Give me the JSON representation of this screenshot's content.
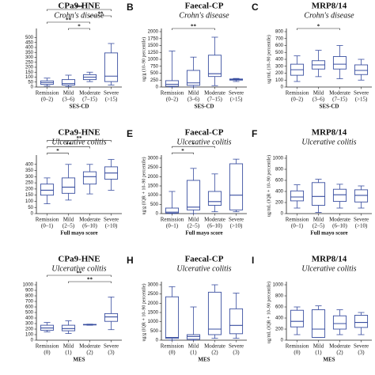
{
  "chart_data": [
    {
      "type": "box",
      "title": "CPa9-HNE",
      "subtitle": "Crohn's disease",
      "categories": [
        "Remission",
        "Mild",
        "Moderate",
        "Severe"
      ],
      "ranges": [
        "(0–2)",
        "(3–6)",
        "(7–15)",
        "(>15)"
      ],
      "xlabel": "SES-CD",
      "ylim": [
        0,
        560
      ],
      "yticks": [
        0,
        50,
        100,
        150,
        200,
        250,
        300,
        350,
        400,
        450,
        500
      ],
      "color": "#3a4fa0",
      "boxes": [
        {
          "low": 10,
          "q1": 28,
          "median": 45,
          "q3": 62,
          "high": 90
        },
        {
          "low": 5,
          "q1": 20,
          "median": 35,
          "q3": 75,
          "high": 120
        },
        {
          "low": 55,
          "q1": 75,
          "median": 100,
          "q3": 125,
          "high": 150
        },
        {
          "low": 20,
          "q1": 55,
          "median": 110,
          "q3": 345,
          "high": 440
        }
      ],
      "brackets": [
        {
          "from": 1,
          "to": 2,
          "label": "*"
        },
        {
          "from": 0,
          "to": 2,
          "label": "**"
        },
        {
          "from": 2,
          "to": 3,
          "label": "**"
        },
        {
          "from": 0,
          "to": 3,
          "label": "***"
        }
      ]
    },
    {
      "type": "box",
      "letter": "B",
      "title": "Faecal-CP",
      "subtitle": "Crohn's disease",
      "ylabel": "ug/g (10–90 percentile)",
      "categories": [
        "Remission",
        "Mild",
        "Moderate",
        "Severe"
      ],
      "ranges": [
        "(0–2)",
        "(3–6)",
        "(7–15)",
        "(>15)"
      ],
      "xlabel": "SES-CD",
      "ylim": [
        0,
        2000
      ],
      "yticks": [
        0,
        250,
        500,
        750,
        1000,
        1250,
        1500,
        1750,
        2000
      ],
      "color": "#3a4fa0",
      "boxes": [
        {
          "low": 0,
          "q1": 30,
          "median": 100,
          "q3": 230,
          "high": 1300
        },
        {
          "low": 0,
          "q1": 60,
          "median": 150,
          "q3": 600,
          "high": 1080
        },
        {
          "low": 50,
          "q1": 380,
          "median": 480,
          "q3": 1150,
          "high": 1800
        },
        {
          "low": 200,
          "q1": 250,
          "median": 270,
          "q3": 290,
          "high": 310
        }
      ],
      "brackets": [
        {
          "from": 0,
          "to": 2,
          "label": "**"
        }
      ]
    },
    {
      "type": "box",
      "letter": "C",
      "title": "MRP8/14",
      "subtitle": "Crohn's disease",
      "ylabel": "ug/mL (10–90 percentile)",
      "categories": [
        "Remission",
        "Mild",
        "Moderate",
        "Severe"
      ],
      "ranges": [
        "(0–2)",
        "(3–6)",
        "(7–15)",
        "(>15)"
      ],
      "xlabel": "SES-CD",
      "ylim": [
        0,
        800
      ],
      "yticks": [
        0,
        100,
        200,
        300,
        400,
        500,
        600,
        700,
        800
      ],
      "color": "#3a4fa0",
      "boxes": [
        {
          "low": 80,
          "q1": 170,
          "median": 250,
          "q3": 330,
          "high": 450
        },
        {
          "low": 150,
          "q1": 260,
          "median": 320,
          "q3": 380,
          "high": 530
        },
        {
          "low": 120,
          "q1": 260,
          "median": 330,
          "q3": 440,
          "high": 600
        },
        {
          "low": 100,
          "q1": 180,
          "median": 240,
          "q3": 320,
          "high": 400
        }
      ],
      "brackets": [
        {
          "from": 0,
          "to": 2,
          "label": "*"
        }
      ]
    },
    {
      "type": "box",
      "title": "CPa9-HNE",
      "subtitle": "Ulcerative colitis",
      "categories": [
        "Remission",
        "Mild",
        "Moderate",
        "Severe"
      ],
      "ranges": [
        "(0–1)",
        "(2–5)",
        "(6–10)",
        "(>10)"
      ],
      "xlabel": "Full mayo score",
      "ylim": [
        0,
        450
      ],
      "yticks": [
        0,
        50,
        100,
        150,
        200,
        250,
        300,
        350,
        400
      ],
      "color": "#3a4fa0",
      "boxes": [
        {
          "low": 80,
          "q1": 150,
          "median": 190,
          "q3": 240,
          "high": 290
        },
        {
          "low": 110,
          "q1": 165,
          "median": 215,
          "q3": 290,
          "high": 400
        },
        {
          "low": 160,
          "q1": 240,
          "median": 300,
          "q3": 340,
          "high": 400
        },
        {
          "low": 190,
          "q1": 280,
          "median": 330,
          "q3": 380,
          "high": 440
        }
      ],
      "brackets": [
        {
          "from": 0,
          "to": 1,
          "label": "*"
        },
        {
          "from": 0,
          "to": 2,
          "label": "**"
        },
        {
          "from": 0,
          "to": 3,
          "label": "**"
        }
      ]
    },
    {
      "type": "box",
      "letter": "E",
      "title": "Faecal-CP",
      "subtitle": "Ulcerative colitis",
      "ylabel": "ug/g (IQR + 10–90 percentile)",
      "categories": [
        "Remission",
        "Mild",
        "Moderate",
        "Severe"
      ],
      "ranges": [
        "(0–1)",
        "(2–5)",
        "(6–10)",
        "(>10)"
      ],
      "xlabel": "Full mayo score",
      "ylim": [
        0,
        3000
      ],
      "yticks": [
        0,
        500,
        1000,
        1500,
        2000,
        2500,
        3000
      ],
      "color": "#3a4fa0",
      "boxes": [
        {
          "low": 0,
          "q1": 30,
          "median": 80,
          "q3": 300,
          "high": 1200
        },
        {
          "low": 0,
          "q1": 200,
          "median": 350,
          "q3": 1800,
          "high": 2450
        },
        {
          "low": 100,
          "q1": 450,
          "median": 650,
          "q3": 1200,
          "high": 2150
        },
        {
          "low": 100,
          "q1": 200,
          "median": 1000,
          "q3": 2700,
          "high": 2950
        }
      ],
      "brackets": [
        {
          "from": 0,
          "to": 1,
          "label": "*"
        },
        {
          "from": 0,
          "to": 2,
          "label": "*"
        }
      ]
    },
    {
      "type": "box",
      "letter": "F",
      "title": "MRP8/14",
      "subtitle": "Ulcerative colitis",
      "ylabel": "ug/mL (IQR + 10–90 percentile)",
      "categories": [
        "Remission",
        "Mild",
        "Moderate",
        "Severe"
      ],
      "ranges": [
        "(0–1)",
        "(2–5)",
        "(6–10)",
        "(>10)"
      ],
      "xlabel": "Full mayo score",
      "ylim": [
        0,
        1000
      ],
      "yticks": [
        0,
        200,
        400,
        600,
        800,
        1000
      ],
      "color": "#3a4fa0",
      "boxes": [
        {
          "low": 100,
          "q1": 230,
          "median": 300,
          "q3": 410,
          "high": 520
        },
        {
          "low": 20,
          "q1": 150,
          "median": 310,
          "q3": 560,
          "high": 620
        },
        {
          "low": 100,
          "q1": 220,
          "median": 340,
          "q3": 440,
          "high": 530
        },
        {
          "low": 100,
          "q1": 210,
          "median": 330,
          "q3": 430,
          "high": 500
        }
      ],
      "brackets": []
    },
    {
      "type": "box",
      "title": "CPa9-HNE",
      "subtitle": "Ulcerative colitis",
      "categories": [
        "Remission",
        "Mild",
        "Moderate",
        "Severe"
      ],
      "ranges": [
        "(0)",
        "(1)",
        "(2)",
        "(3)"
      ],
      "xlabel": "MES",
      "ylim": [
        0,
        1000
      ],
      "yticks": [
        0,
        100,
        200,
        300,
        400,
        500,
        600,
        700,
        800,
        900,
        1000
      ],
      "color": "#3a4fa0",
      "boxes": [
        {
          "low": 150,
          "q1": 180,
          "median": 220,
          "q3": 270,
          "high": 320
        },
        {
          "low": 120,
          "q1": 170,
          "median": 210,
          "q3": 270,
          "high": 350
        },
        {
          "low": 270,
          "q1": 275,
          "median": 280,
          "q3": 285,
          "high": 290
        },
        {
          "low": 190,
          "q1": 340,
          "median": 420,
          "q3": 480,
          "high": 780
        }
      ],
      "brackets": [
        {
          "from": 1,
          "to": 3,
          "label": "**"
        },
        {
          "from": 0,
          "to": 3,
          "label": "**"
        }
      ]
    },
    {
      "type": "box",
      "letter": "H",
      "title": "Faecal-CP",
      "subtitle": "Ulcerative colitis",
      "ylabel": "ug/g (IQR + 10–90 percentile)",
      "categories": [
        "Remission",
        "Mild",
        "Moderate",
        "Severe"
      ],
      "ranges": [
        "(0)",
        "(1)",
        "(2)",
        "(3)"
      ],
      "xlabel": "MES",
      "ylim": [
        0,
        3000
      ],
      "yticks": [
        0,
        500,
        1000,
        1500,
        2000,
        2500,
        3000
      ],
      "color": "#3a4fa0",
      "boxes": [
        {
          "low": 0,
          "q1": 100,
          "median": 150,
          "q3": 2350,
          "high": 2900
        },
        {
          "low": 0,
          "q1": 50,
          "median": 200,
          "q3": 300,
          "high": 1800
        },
        {
          "low": 100,
          "q1": 300,
          "median": 600,
          "q3": 2600,
          "high": 3000
        },
        {
          "low": 100,
          "q1": 350,
          "median": 800,
          "q3": 1700,
          "high": 2550
        }
      ],
      "brackets": []
    },
    {
      "type": "box",
      "letter": "I",
      "title": "MRP8/14",
      "subtitle": "Ulcerative colitis",
      "ylabel": "ug/mL (IQR + 10–90 percentile)",
      "categories": [
        "Remission",
        "Mild",
        "Moderate",
        "Severe"
      ],
      "ranges": [
        "(0)",
        "(1)",
        "(2)",
        "(3)"
      ],
      "xlabel": "MES",
      "ylim": [
        0,
        1000
      ],
      "yticks": [
        0,
        200,
        400,
        600,
        800,
        1000
      ],
      "color": "#3a4fa0",
      "boxes": [
        {
          "low": 100,
          "q1": 240,
          "median": 340,
          "q3": 540,
          "high": 600
        },
        {
          "low": 50,
          "q1": 50,
          "median": 200,
          "q3": 550,
          "high": 620
        },
        {
          "low": 100,
          "q1": 200,
          "median": 300,
          "q3": 440,
          "high": 550
        },
        {
          "low": 100,
          "q1": 230,
          "median": 320,
          "q3": 450,
          "high": 500
        }
      ],
      "brackets": []
    }
  ]
}
